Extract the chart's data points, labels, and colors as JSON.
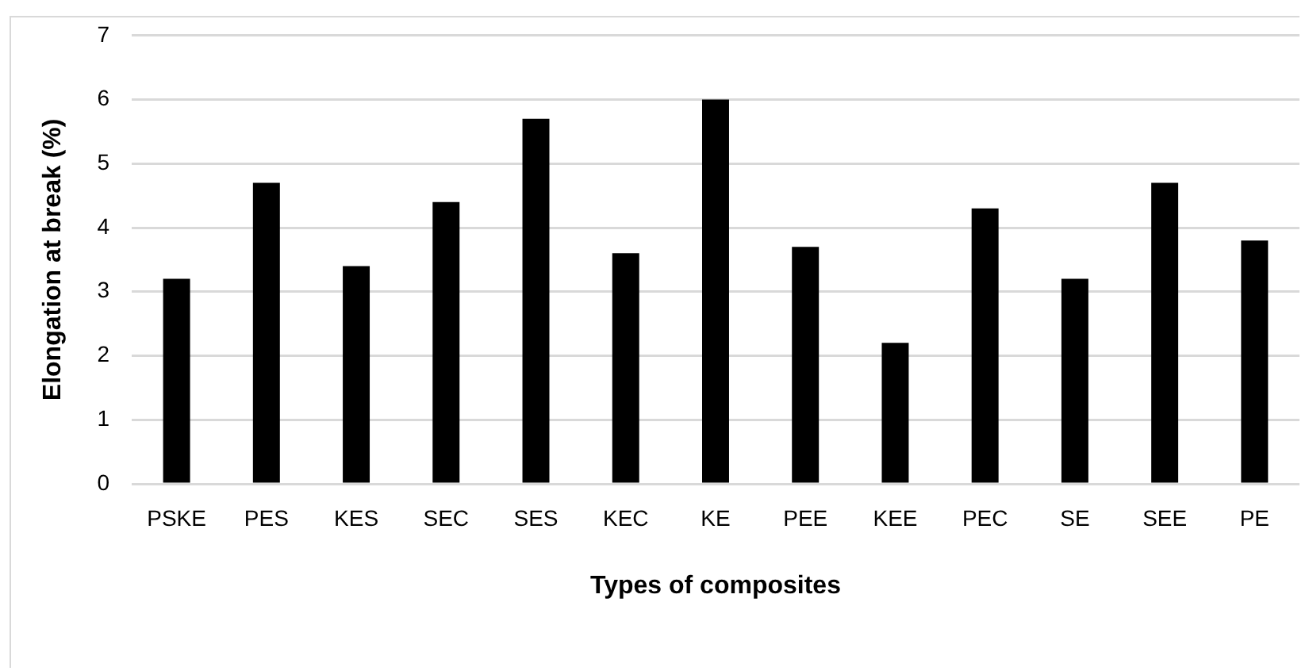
{
  "chart_data": {
    "type": "bar",
    "xlabel": "Types of composites",
    "ylabel": "Elongation at break (%)",
    "categories": [
      "PSKE",
      "PES",
      "KES",
      "SEC",
      "SES",
      "KEC",
      "KE",
      "PEE",
      "KEE",
      "PEC",
      "SE",
      "SEE",
      "PE"
    ],
    "values": [
      3.2,
      4.7,
      3.4,
      4.4,
      5.7,
      3.6,
      6.0,
      3.7,
      2.2,
      4.3,
      3.2,
      4.7,
      3.8
    ],
    "color": "#000000",
    "ylim": [
      0,
      7
    ],
    "yticks": [
      0,
      1,
      2,
      3,
      4,
      5,
      6,
      7
    ],
    "grid": "y"
  }
}
